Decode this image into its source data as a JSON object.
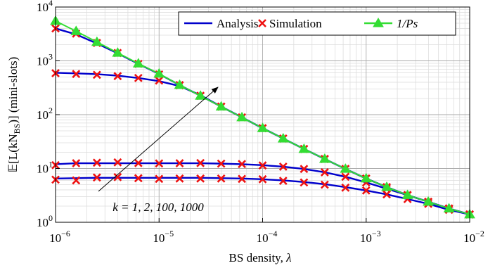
{
  "chart_data": {
    "type": "line",
    "xlabel": [
      "BS density, ",
      "λ"
    ],
    "ylabel": [
      "𝔼[L(kN",
      "BS",
      ")] (mini-slots)"
    ],
    "annotation": "k = 1, 2, 100, 1000",
    "xscale": "log",
    "yscale": "log",
    "grid": true,
    "legend": "top-right",
    "xlim": [
      1e-06,
      0.01
    ],
    "ylim": [
      1,
      10000
    ],
    "xticks": [
      {
        "value": 1e-06,
        "label": "10",
        "exp": "−6"
      },
      {
        "value": 1e-05,
        "label": "10",
        "exp": "−5"
      },
      {
        "value": 0.0001,
        "label": "10",
        "exp": "−4"
      },
      {
        "value": 0.001,
        "label": "10",
        "exp": "−3"
      },
      {
        "value": 0.01,
        "label": "10",
        "exp": "−2"
      }
    ],
    "yticks": [
      {
        "value": 1,
        "label": "10",
        "exp": "0"
      },
      {
        "value": 10,
        "label": "10",
        "exp": "1"
      },
      {
        "value": 100,
        "label": "10",
        "exp": "2"
      },
      {
        "value": 1000,
        "label": "10",
        "exp": "3"
      },
      {
        "value": 10000,
        "label": "10",
        "exp": "4"
      }
    ],
    "x": [
      1e-06,
      1.58e-06,
      2.51e-06,
      3.98e-06,
      6.31e-06,
      1e-05,
      1.58e-05,
      2.51e-05,
      3.98e-05,
      6.31e-05,
      0.0001,
      0.000158,
      0.000251,
      0.000398,
      0.000631,
      0.001,
      0.00158,
      0.00251,
      0.00398,
      0.00631,
      0.01
    ],
    "series": [
      {
        "name": "Analysis",
        "color": "#0000cc",
        "style": "line",
        "values": [
          [
            6.5,
            6.6,
            6.7,
            6.7,
            6.7,
            6.7,
            6.7,
            6.7,
            6.6,
            6.5,
            6.3,
            6.0,
            5.6,
            5.1,
            4.5,
            3.9,
            3.3,
            2.7,
            2.2,
            1.7,
            1.4
          ],
          [
            12,
            12.5,
            12.5,
            12.5,
            12.5,
            12.5,
            12.5,
            12.5,
            12.3,
            12,
            11.5,
            10.8,
            9.8,
            8.5,
            7,
            5.5,
            4.2,
            3.2,
            2.4,
            1.8,
            1.4
          ],
          [
            600,
            585,
            565,
            530,
            480,
            420,
            340,
            230,
            141,
            89,
            56,
            36,
            23,
            15,
            9.8,
            6.5,
            4.5,
            3.2,
            2.4,
            1.8,
            1.4
          ],
          [
            4000,
            3100,
            2100,
            1380,
            880,
            570,
            355,
            224,
            141,
            89,
            56,
            36,
            23,
            15,
            9.8,
            6.5,
            4.5,
            3.2,
            2.4,
            1.8,
            1.4
          ]
        ]
      },
      {
        "name": "Simulation",
        "color": "#ee1111",
        "style": "cross",
        "values": [
          [
            6.2,
            6.0,
            6.8,
            6.9,
            6.6,
            6.4,
            6.5,
            6.5,
            6.5,
            6.4,
            6.3,
            5.9,
            5.5,
            5.0,
            4.4,
            3.9,
            3.3,
            2.7,
            2.2,
            1.7,
            1.4
          ],
          [
            11.5,
            12.5,
            12.8,
            13,
            12.6,
            12.4,
            12.5,
            12.6,
            12.3,
            12.1,
            11.4,
            10.8,
            9.8,
            8.5,
            7,
            5.5,
            4.2,
            3.2,
            2.4,
            1.8,
            1.4
          ],
          [
            590,
            570,
            550,
            520,
            480,
            430,
            350,
            224,
            141,
            89,
            56,
            36,
            23,
            15,
            9.8,
            6.5,
            4.5,
            3.2,
            2.4,
            1.8,
            1.4
          ],
          [
            4000,
            3200,
            2150,
            1400,
            880,
            560,
            355,
            224,
            141,
            89,
            56,
            36,
            23,
            15,
            9.8,
            6.5,
            4.5,
            3.2,
            2.4,
            1.8,
            1.4
          ]
        ]
      },
      {
        "name": "1/Ps",
        "color": "#33dd33",
        "style": "triangle",
        "values": [
          [
            5500,
            3550,
            2240,
            1410,
            890,
            575,
            355,
            224,
            141,
            89,
            56,
            36,
            23,
            15,
            9.8,
            6.5,
            4.5,
            3.2,
            2.4,
            1.8,
            1.4
          ]
        ]
      }
    ]
  }
}
